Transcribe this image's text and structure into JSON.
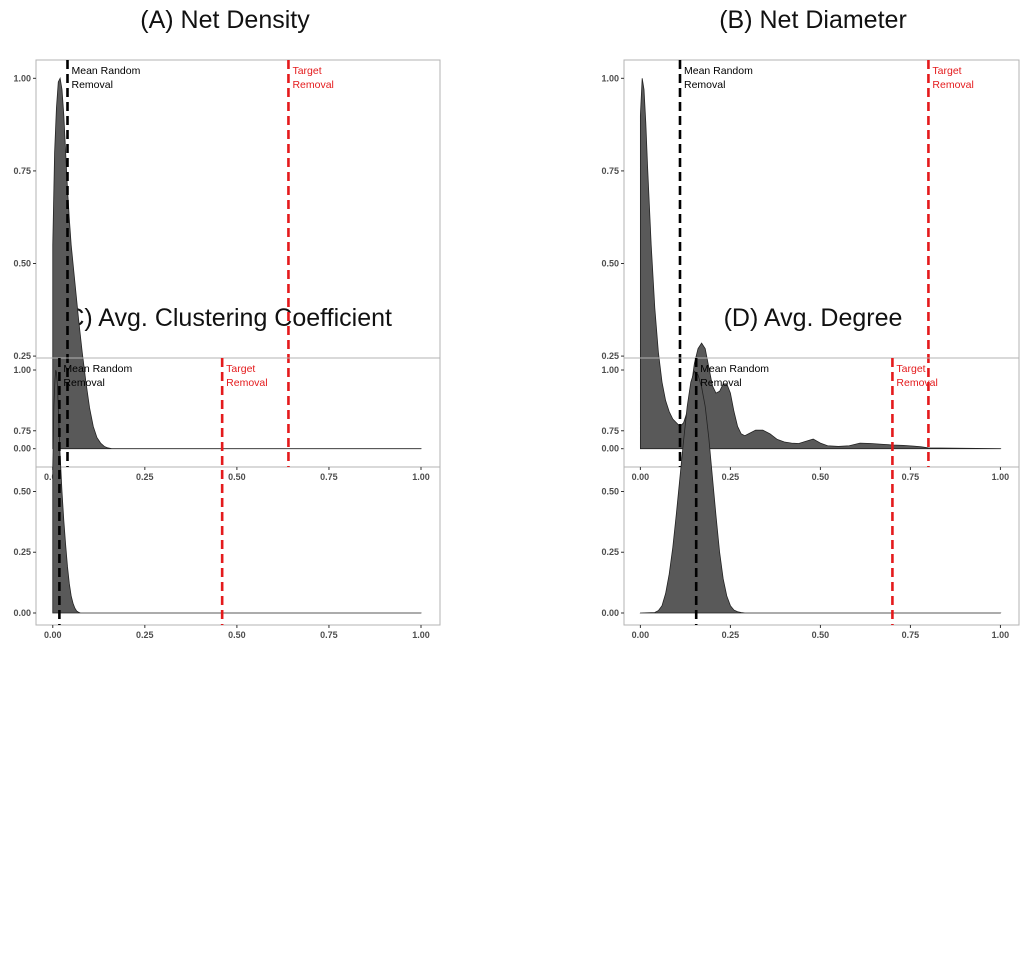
{
  "colors": {
    "density_fill": "#595959",
    "mean_line": "#000000",
    "target_line": "#e41a1c",
    "panel_border": "#b3b3b3",
    "background": "#ffffff"
  },
  "chart_data": [
    {
      "id": "A",
      "type": "area",
      "title": "(A) Net Density",
      "xlim": [
        0,
        1
      ],
      "ylim": [
        0,
        1
      ],
      "x_ticks": [
        "0.00",
        "0.25",
        "0.50",
        "0.75",
        "1.00"
      ],
      "y_ticks": [
        "0.00",
        "0.25",
        "0.50",
        "0.75",
        "1.00"
      ],
      "grid": false,
      "density": {
        "x": [
          0.0,
          0.005,
          0.01,
          0.015,
          0.02,
          0.025,
          0.03,
          0.035,
          0.04,
          0.045,
          0.05,
          0.06,
          0.07,
          0.08,
          0.09,
          0.1,
          0.11,
          0.12,
          0.13,
          0.14,
          0.15,
          0.16,
          1.0
        ],
        "y": [
          0.55,
          0.8,
          0.92,
          0.99,
          1.0,
          0.97,
          0.9,
          0.8,
          0.7,
          0.62,
          0.55,
          0.45,
          0.35,
          0.26,
          0.18,
          0.11,
          0.06,
          0.03,
          0.015,
          0.006,
          0.002,
          0.0,
          0.0
        ]
      },
      "annotations": [
        {
          "name": "mean-random-removal",
          "x": 0.04,
          "lines": [
            "Mean Random",
            "Removal"
          ],
          "color": "#000000"
        },
        {
          "name": "target-removal",
          "x": 0.64,
          "lines": [
            "Target",
            "Removal"
          ],
          "color": "#e41a1c"
        }
      ]
    },
    {
      "id": "B",
      "type": "area",
      "title": "(B) Net Diameter",
      "xlim": [
        0,
        1
      ],
      "ylim": [
        0,
        1
      ],
      "x_ticks": [
        "0.00",
        "0.25",
        "0.50",
        "0.75",
        "1.00"
      ],
      "y_ticks": [
        "0.00",
        "0.25",
        "0.50",
        "0.75",
        "1.00"
      ],
      "grid": false,
      "density": {
        "x": [
          0.0,
          0.005,
          0.01,
          0.015,
          0.02,
          0.03,
          0.04,
          0.05,
          0.06,
          0.07,
          0.08,
          0.09,
          0.1,
          0.11,
          0.12,
          0.13,
          0.14,
          0.15,
          0.16,
          0.17,
          0.18,
          0.19,
          0.2,
          0.21,
          0.22,
          0.23,
          0.24,
          0.25,
          0.26,
          0.27,
          0.28,
          0.29,
          0.3,
          0.32,
          0.34,
          0.36,
          0.38,
          0.4,
          0.42,
          0.44,
          0.46,
          0.48,
          0.5,
          0.52,
          0.55,
          0.58,
          0.61,
          0.64,
          0.67,
          0.7,
          0.73,
          0.76,
          0.78,
          0.8,
          1.0
        ],
        "y": [
          0.9,
          1.0,
          0.97,
          0.88,
          0.76,
          0.55,
          0.38,
          0.26,
          0.18,
          0.13,
          0.1,
          0.08,
          0.07,
          0.06,
          0.07,
          0.1,
          0.16,
          0.23,
          0.27,
          0.285,
          0.27,
          0.22,
          0.17,
          0.15,
          0.155,
          0.175,
          0.175,
          0.15,
          0.1,
          0.06,
          0.04,
          0.035,
          0.04,
          0.05,
          0.05,
          0.04,
          0.025,
          0.018,
          0.015,
          0.014,
          0.02,
          0.026,
          0.015,
          0.008,
          0.006,
          0.008,
          0.015,
          0.014,
          0.012,
          0.01,
          0.009,
          0.007,
          0.005,
          0.002,
          0.0
        ]
      },
      "annotations": [
        {
          "name": "mean-random-removal",
          "x": 0.11,
          "lines": [
            "Mean Random",
            "Removal"
          ],
          "color": "#000000"
        },
        {
          "name": "target-removal",
          "x": 0.8,
          "lines": [
            "Target",
            "Removal"
          ],
          "color": "#e41a1c"
        }
      ]
    },
    {
      "id": "C",
      "type": "area",
      "title": "(C) Avg. Clustering Coefficient",
      "xlim": [
        0,
        1
      ],
      "ylim": [
        0,
        1
      ],
      "x_ticks": [
        "0.00",
        "0.25",
        "0.50",
        "0.75",
        "1.00"
      ],
      "y_ticks": [
        "0.00",
        "0.25",
        "0.50",
        "0.75",
        "1.00"
      ],
      "grid": false,
      "density": {
        "x": [
          0.0,
          0.003,
          0.006,
          0.008,
          0.01,
          0.013,
          0.016,
          0.02,
          0.025,
          0.03,
          0.035,
          0.04,
          0.045,
          0.05,
          0.055,
          0.06,
          0.065,
          0.07,
          0.075,
          1.0
        ],
        "y": [
          0.6,
          0.85,
          0.96,
          1.0,
          0.99,
          0.93,
          0.8,
          0.65,
          0.5,
          0.38,
          0.28,
          0.19,
          0.12,
          0.07,
          0.04,
          0.02,
          0.008,
          0.003,
          0.0,
          0.0
        ]
      },
      "annotations": [
        {
          "name": "mean-random-removal",
          "x": 0.018,
          "lines": [
            "Mean Random",
            "Removal"
          ],
          "color": "#000000"
        },
        {
          "name": "target-removal",
          "x": 0.46,
          "lines": [
            "Target",
            "Removal"
          ],
          "color": "#e41a1c"
        }
      ]
    },
    {
      "id": "D",
      "type": "area",
      "title": "(D) Avg. Degree",
      "xlim": [
        0,
        1
      ],
      "ylim": [
        0,
        1
      ],
      "x_ticks": [
        "0.00",
        "0.25",
        "0.50",
        "0.75",
        "1.00"
      ],
      "y_ticks": [
        "0.00",
        "0.25",
        "0.50",
        "0.75",
        "1.00"
      ],
      "grid": false,
      "density": {
        "x": [
          0.0,
          0.04,
          0.05,
          0.06,
          0.07,
          0.08,
          0.09,
          0.1,
          0.11,
          0.12,
          0.13,
          0.14,
          0.15,
          0.16,
          0.17,
          0.18,
          0.19,
          0.2,
          0.21,
          0.22,
          0.23,
          0.24,
          0.25,
          0.26,
          0.27,
          0.28,
          0.29,
          1.0
        ],
        "y": [
          0.0,
          0.002,
          0.01,
          0.03,
          0.08,
          0.16,
          0.27,
          0.41,
          0.56,
          0.71,
          0.85,
          0.95,
          0.995,
          0.98,
          0.93,
          0.85,
          0.72,
          0.56,
          0.4,
          0.25,
          0.14,
          0.07,
          0.03,
          0.012,
          0.005,
          0.002,
          0.0,
          0.0
        ]
      },
      "annotations": [
        {
          "name": "mean-random-removal",
          "x": 0.155,
          "lines": [
            "Mean Random",
            "Removal"
          ],
          "color": "#000000"
        },
        {
          "name": "target-removal",
          "x": 0.7,
          "lines": [
            "Target",
            "Removal"
          ],
          "color": "#e41a1c"
        }
      ]
    }
  ]
}
